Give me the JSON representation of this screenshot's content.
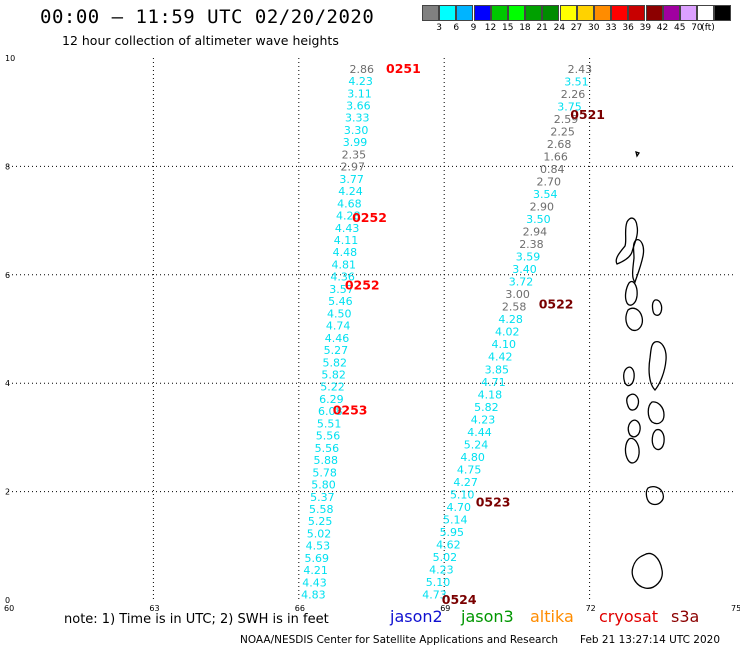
{
  "header": {
    "title": "00:00 – 11:59 UTC 02/20/2020",
    "subtitle": "12 hour collection of altimeter wave heights"
  },
  "colorbar": {
    "items": [
      {
        "label": "",
        "color": "#808080"
      },
      {
        "label": "3",
        "color": "#00ffff"
      },
      {
        "label": "6",
        "color": "#00b4ff"
      },
      {
        "label": "9",
        "color": "#0000ff"
      },
      {
        "label": "12",
        "color": "#00c800"
      },
      {
        "label": "15",
        "color": "#00ff00"
      },
      {
        "label": "18",
        "color": "#00a000"
      },
      {
        "label": "21",
        "color": "#008c00"
      },
      {
        "label": "24",
        "color": "#ffff00"
      },
      {
        "label": "27",
        "color": "#ffd200"
      },
      {
        "label": "30",
        "color": "#ff8c00"
      },
      {
        "label": "33",
        "color": "#ff0000"
      },
      {
        "label": "36",
        "color": "#c80000"
      },
      {
        "label": "39",
        "color": "#8c0000"
      },
      {
        "label": "42",
        "color": "#a000a0"
      },
      {
        "label": "45",
        "color": "#dca0ff"
      },
      {
        "label": "70",
        "color": "#ffffff"
      },
      {
        "label": "",
        "color": "#000000"
      }
    ],
    "unit": "(ft)"
  },
  "map": {
    "x_ticks": [
      "60",
      "63",
      "66",
      "69",
      "72",
      "75"
    ],
    "y_ticks": [
      "0",
      "2",
      "4",
      "6",
      "8",
      "10"
    ],
    "x_range": [
      60,
      75
    ],
    "y_range": [
      0,
      10
    ],
    "gray_color": "#6e6e6e",
    "cyan_color": "#00e0f0",
    "red_color": "#ff0000",
    "darkred_color": "#7a0000",
    "track_left": {
      "start": {
        "lon": 67.3,
        "lat": 9.8
      },
      "end": {
        "lon": 66.3,
        "lat": 0.1
      },
      "values": [
        {
          "v": "2.86",
          "c": "gray"
        },
        {
          "v": "4.23",
          "c": "cyan"
        },
        {
          "v": "3.11",
          "c": "cyan"
        },
        {
          "v": "3.66",
          "c": "cyan"
        },
        {
          "v": "3.33",
          "c": "cyan"
        },
        {
          "v": "3.30",
          "c": "cyan"
        },
        {
          "v": "3.99",
          "c": "cyan"
        },
        {
          "v": "2.35",
          "c": "gray"
        },
        {
          "v": "2.97",
          "c": "gray"
        },
        {
          "v": "3.77",
          "c": "cyan"
        },
        {
          "v": "4.24",
          "c": "cyan"
        },
        {
          "v": "4.68",
          "c": "cyan"
        },
        {
          "v": "4.28",
          "c": "cyan"
        },
        {
          "v": "4.43",
          "c": "cyan"
        },
        {
          "v": "4.11",
          "c": "cyan"
        },
        {
          "v": "4.48",
          "c": "cyan"
        },
        {
          "v": "4.81",
          "c": "cyan"
        },
        {
          "v": "4.36",
          "c": "cyan"
        },
        {
          "v": "3.57",
          "c": "cyan"
        },
        {
          "v": "5.46",
          "c": "cyan"
        },
        {
          "v": "4.50",
          "c": "cyan"
        },
        {
          "v": "4.74",
          "c": "cyan"
        },
        {
          "v": "4.46",
          "c": "cyan"
        },
        {
          "v": "5.27",
          "c": "cyan"
        },
        {
          "v": "5.82",
          "c": "cyan"
        },
        {
          "v": "5.82",
          "c": "cyan"
        },
        {
          "v": "5.22",
          "c": "cyan"
        },
        {
          "v": "6.29",
          "c": "cyan"
        },
        {
          "v": "6.08",
          "c": "cyan"
        },
        {
          "v": "5.51",
          "c": "cyan"
        },
        {
          "v": "5.56",
          "c": "cyan"
        },
        {
          "v": "5.56",
          "c": "cyan"
        },
        {
          "v": "5.88",
          "c": "cyan"
        },
        {
          "v": "5.78",
          "c": "cyan"
        },
        {
          "v": "5.80",
          "c": "cyan"
        },
        {
          "v": "5.37",
          "c": "cyan"
        },
        {
          "v": "5.58",
          "c": "cyan"
        },
        {
          "v": "5.25",
          "c": "cyan"
        },
        {
          "v": "5.02",
          "c": "cyan"
        },
        {
          "v": "4.53",
          "c": "cyan"
        },
        {
          "v": "5.69",
          "c": "cyan"
        },
        {
          "v": "4.21",
          "c": "cyan"
        },
        {
          "v": "4.43",
          "c": "cyan"
        },
        {
          "v": "4.83",
          "c": "cyan"
        }
      ]
    },
    "track_right": {
      "start": {
        "lon": 71.8,
        "lat": 9.8
      },
      "end": {
        "lon": 68.8,
        "lat": 0.1
      },
      "values": [
        {
          "v": "2.43",
          "c": "gray"
        },
        {
          "v": "3.51",
          "c": "cyan"
        },
        {
          "v": "2.26",
          "c": "gray"
        },
        {
          "v": "3.75",
          "c": "cyan"
        },
        {
          "v": "2.59",
          "c": "gray"
        },
        {
          "v": "2.25",
          "c": "gray"
        },
        {
          "v": "2.68",
          "c": "gray"
        },
        {
          "v": "1.66",
          "c": "gray"
        },
        {
          "v": "0.84",
          "c": "gray"
        },
        {
          "v": "2.70",
          "c": "gray"
        },
        {
          "v": "3.54",
          "c": "cyan"
        },
        {
          "v": "2.90",
          "c": "gray"
        },
        {
          "v": "3.50",
          "c": "cyan"
        },
        {
          "v": "2.94",
          "c": "gray"
        },
        {
          "v": "2.38",
          "c": "gray"
        },
        {
          "v": "3.59",
          "c": "cyan"
        },
        {
          "v": "3.40",
          "c": "cyan"
        },
        {
          "v": "3.72",
          "c": "cyan"
        },
        {
          "v": "3.00",
          "c": "gray"
        },
        {
          "v": "2.58",
          "c": "gray"
        },
        {
          "v": "4.28",
          "c": "cyan"
        },
        {
          "v": "4.02",
          "c": "cyan"
        },
        {
          "v": "4.10",
          "c": "cyan"
        },
        {
          "v": "4.42",
          "c": "cyan"
        },
        {
          "v": "3.85",
          "c": "cyan"
        },
        {
          "v": "4.71",
          "c": "cyan"
        },
        {
          "v": "4.18",
          "c": "cyan"
        },
        {
          "v": "5.82",
          "c": "cyan"
        },
        {
          "v": "4.23",
          "c": "cyan"
        },
        {
          "v": "4.44",
          "c": "cyan"
        },
        {
          "v": "5.24",
          "c": "cyan"
        },
        {
          "v": "4.80",
          "c": "cyan"
        },
        {
          "v": "4.75",
          "c": "cyan"
        },
        {
          "v": "4.27",
          "c": "cyan"
        },
        {
          "v": "5.10",
          "c": "cyan"
        },
        {
          "v": "4.70",
          "c": "cyan"
        },
        {
          "v": "5.14",
          "c": "cyan"
        },
        {
          "v": "5.95",
          "c": "cyan"
        },
        {
          "v": "4.62",
          "c": "cyan"
        },
        {
          "v": "5.02",
          "c": "cyan"
        },
        {
          "v": "4.23",
          "c": "cyan"
        },
        {
          "v": "5.10",
          "c": "cyan"
        },
        {
          "v": "4.73",
          "c": "cyan"
        }
      ]
    },
    "time_labels": [
      {
        "text": "0251",
        "lon": 67.8,
        "lat": 9.8,
        "c": "red"
      },
      {
        "text": "0252",
        "lon": 67.1,
        "lat": 7.05,
        "c": "red"
      },
      {
        "text": "0252",
        "lon": 66.95,
        "lat": 5.8,
        "c": "red"
      },
      {
        "text": "0253",
        "lon": 66.7,
        "lat": 3.5,
        "c": "red"
      },
      {
        "text": "0521",
        "lon": 71.6,
        "lat": 8.95,
        "c": "darkred"
      },
      {
        "text": "0522",
        "lon": 70.95,
        "lat": 5.45,
        "c": "darkred"
      },
      {
        "text": "0523",
        "lon": 69.65,
        "lat": 1.8,
        "c": "darkred"
      },
      {
        "text": "0524",
        "lon": 68.95,
        "lat": 0.0,
        "c": "darkred"
      }
    ]
  },
  "footer": {
    "note": "note:  1) Time is in UTC;  2) SWH is in feet",
    "satellites": [
      {
        "name": "jason2",
        "color": "#1010d0"
      },
      {
        "name": "jason3",
        "color": "#009600"
      },
      {
        "name": "altika",
        "color": "#ff8c00"
      },
      {
        "name": "cryosat",
        "color": "#e00000"
      },
      {
        "name": "s3a",
        "color": "#8b0000"
      }
    ],
    "credit": "NOAA/NESDIS Center for Satellite Applications and Research",
    "timestamp": "Feb 21 13:27:14 UTC 2020"
  }
}
